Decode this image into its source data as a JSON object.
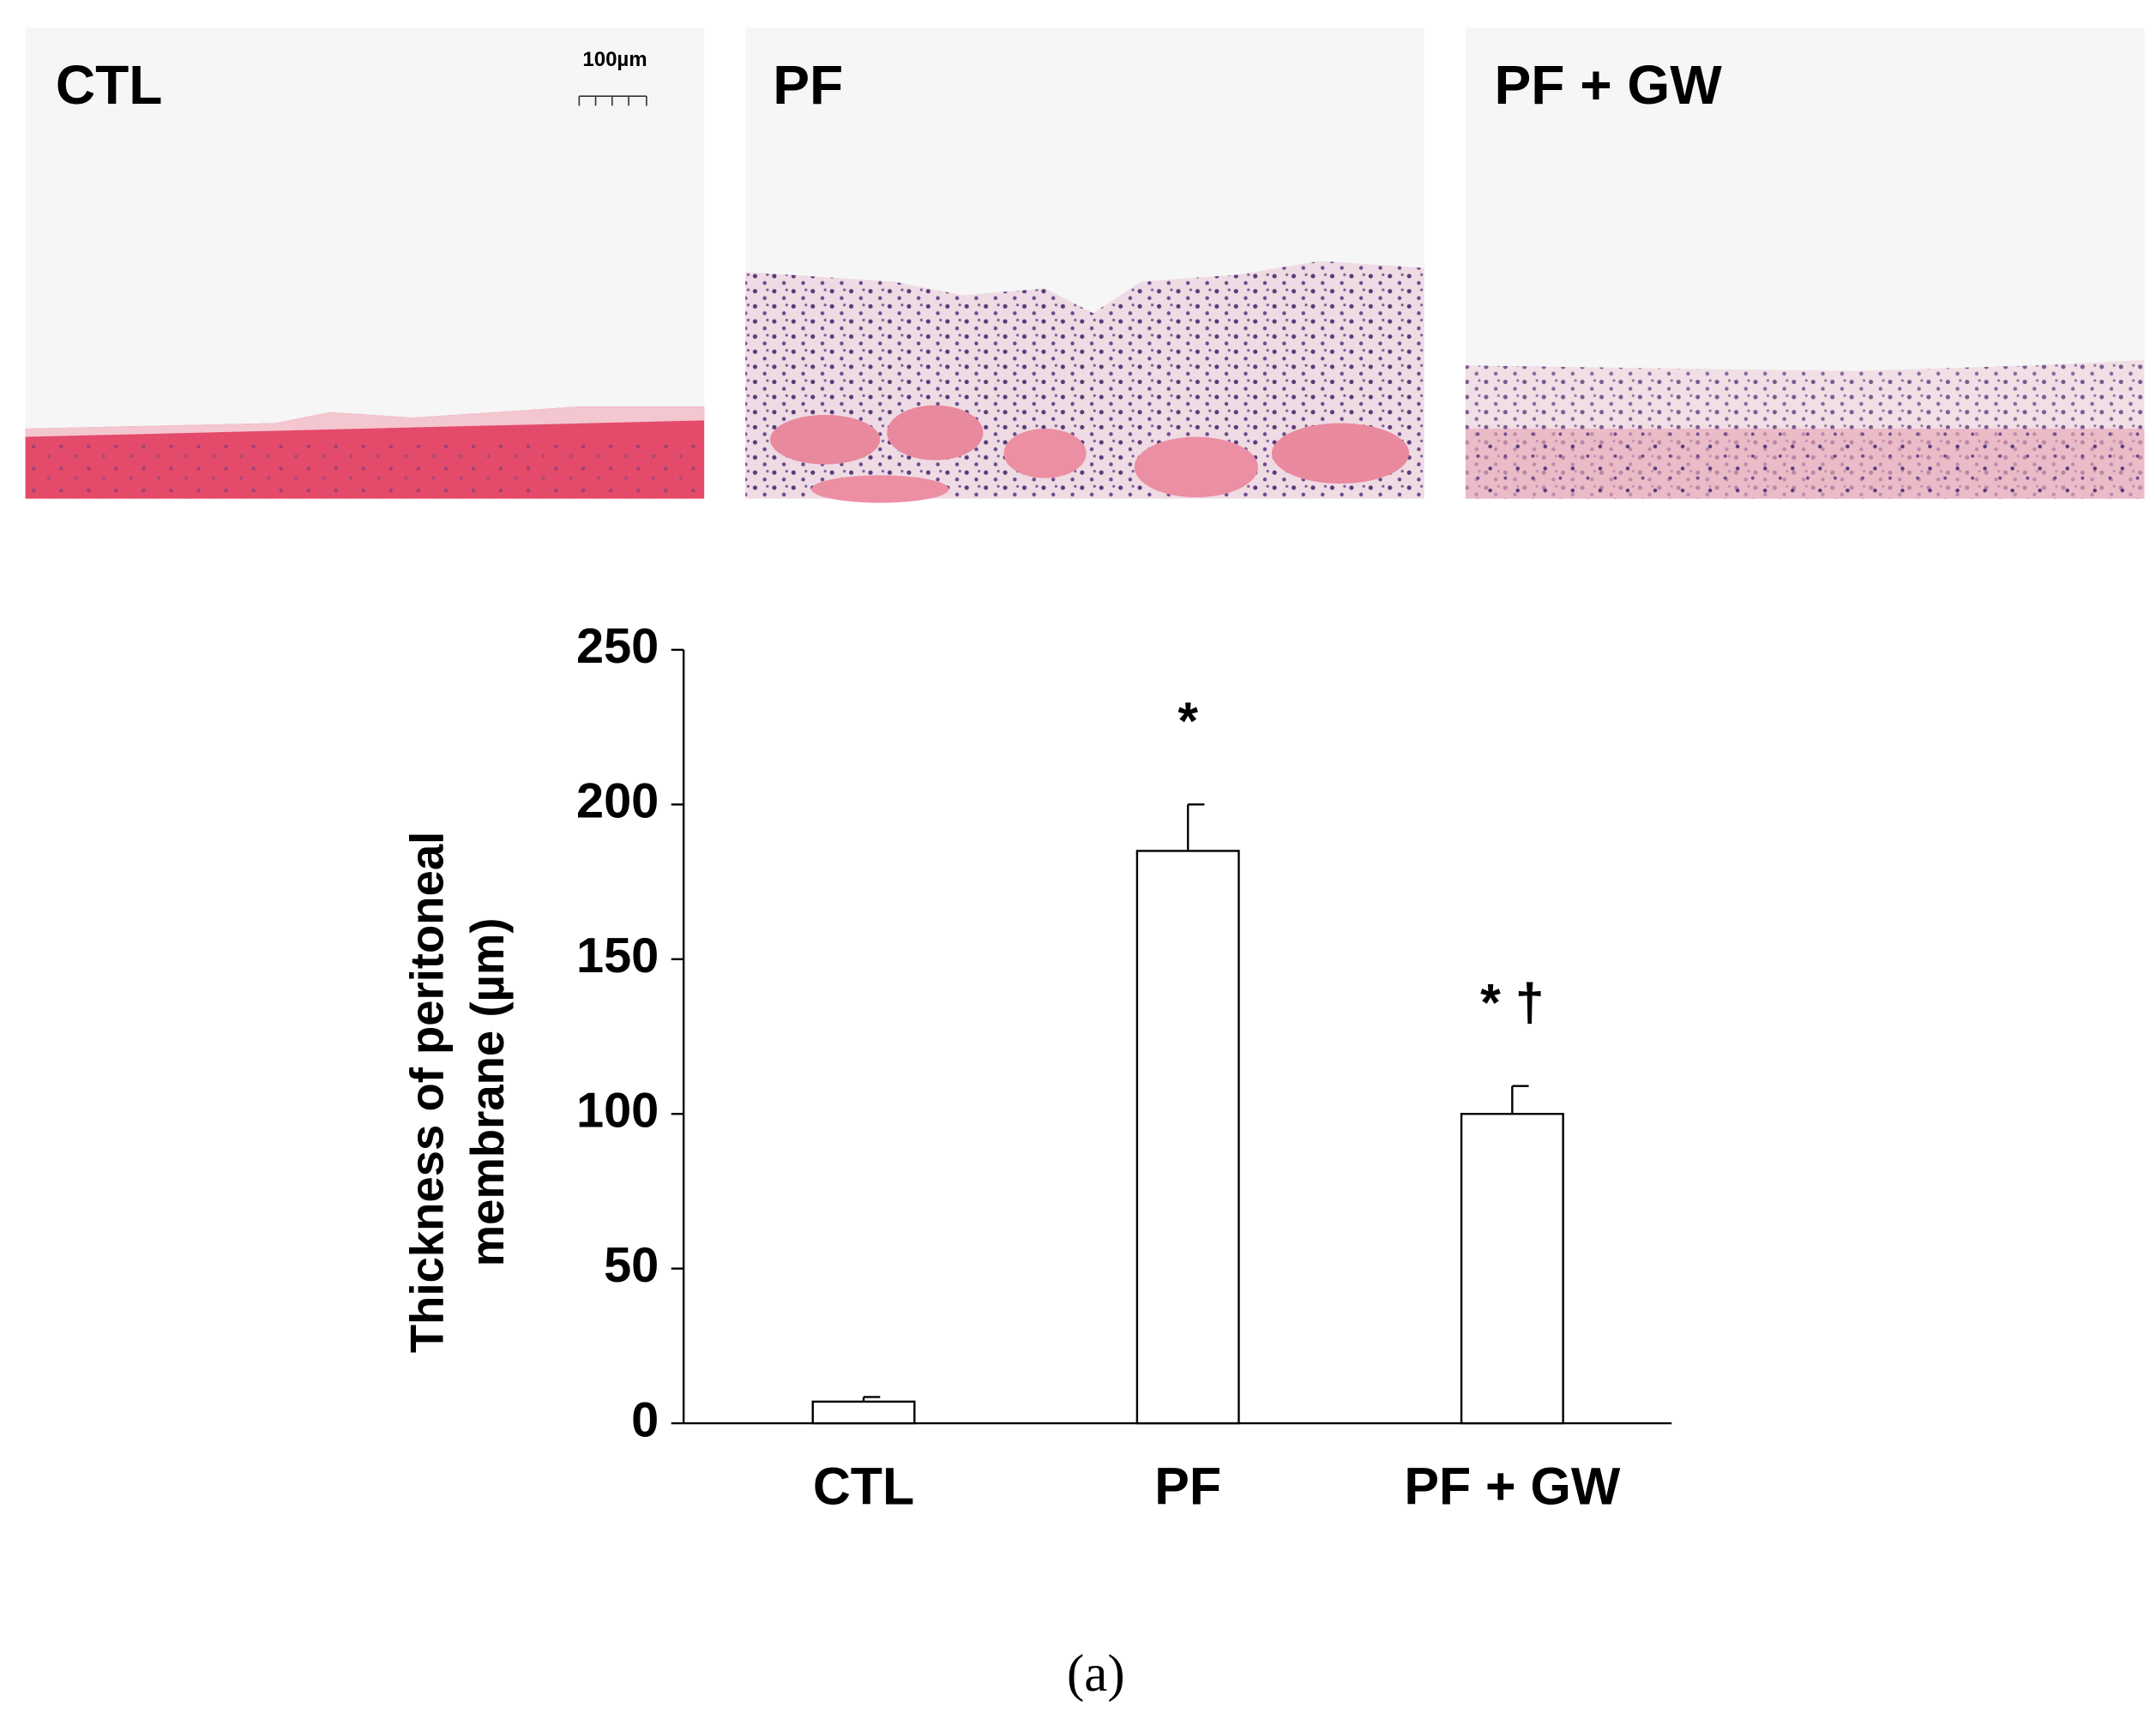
{
  "panels": [
    {
      "label": "CTL"
    },
    {
      "label": "PF"
    },
    {
      "label": "PF + GW"
    }
  ],
  "scale_bar": "100µm",
  "chart_data": {
    "type": "bar",
    "categories": [
      "CTL",
      "PF",
      "PF + GW"
    ],
    "values": [
      7,
      185,
      100
    ],
    "errors": [
      1.5,
      15,
      9
    ],
    "annotations": [
      null,
      "*",
      "* †"
    ],
    "ylabel": [
      "Thickness of peritoneal",
      "membrane (µm)"
    ],
    "color": "#ffffff",
    "ylim": [
      0,
      250
    ],
    "yticks": [
      0,
      50,
      100,
      150,
      200,
      250
    ]
  },
  "caption": "(a)"
}
